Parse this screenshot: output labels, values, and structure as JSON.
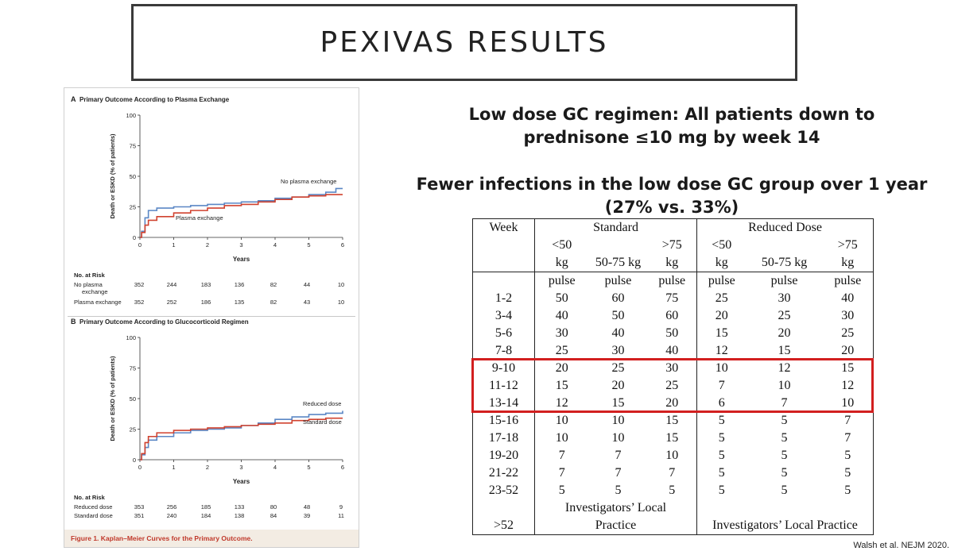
{
  "slide": {
    "title": "PEXIVAS RESULTS",
    "line1": "Low dose GC regimen: All patients down to prednisone ≤10 mg by week 14",
    "line2": "Fewer infections in the low dose GC group over 1 year (27% vs. 33%)",
    "citation": "Walsh et al. NEJM 2020."
  },
  "figure": {
    "caption": "Figure 1. Kaplan–Meier Curves for the Primary Outcome.",
    "panel_a": {
      "letter": "A",
      "title": "Primary Outcome According to Plasma Exchange",
      "ylabel": "Death or ESKD (% of patients)",
      "xlabel": "Years",
      "series_labels": [
        "No plasma exchange",
        "Plasma exchange"
      ],
      "risk_title": "No. at Risk",
      "risk_rows": [
        {
          "name": "No plasma",
          "name2": "exchange",
          "values": [
            "352",
            "244",
            "183",
            "136",
            "82",
            "44",
            "10"
          ]
        },
        {
          "name": "Plasma exchange",
          "values": [
            "352",
            "252",
            "186",
            "135",
            "82",
            "43",
            "10"
          ]
        }
      ]
    },
    "panel_b": {
      "letter": "B",
      "title": "Primary Outcome According to Glucocorticoid Regimen",
      "ylabel": "Death or ESKD (% of patients)",
      "xlabel": "Years",
      "series_labels": [
        "Reduced dose",
        "Standard dose"
      ],
      "risk_title": "No. at Risk",
      "risk_rows": [
        {
          "name": "Reduced dose",
          "values": [
            "353",
            "256",
            "185",
            "133",
            "80",
            "48",
            "9"
          ]
        },
        {
          "name": "Standard dose",
          "values": [
            "351",
            "240",
            "184",
            "138",
            "84",
            "39",
            "11"
          ]
        }
      ]
    },
    "y_ticks": [
      "0",
      "25",
      "50",
      "75",
      "100"
    ],
    "x_ticks": [
      "0",
      "1",
      "2",
      "3",
      "4",
      "5",
      "6"
    ],
    "colors": {
      "blue": "#5b87c5",
      "red": "#d0422f"
    }
  },
  "chart_data": [
    {
      "type": "line",
      "title": "Primary Outcome According to Plasma Exchange",
      "xlabel": "Years",
      "ylabel": "Death or ESKD (% of patients)",
      "xlim": [
        0,
        6
      ],
      "ylim": [
        0,
        100
      ],
      "series": [
        {
          "name": "No plasma exchange",
          "x": [
            0,
            0.05,
            0.15,
            0.25,
            0.5,
            1,
            1.5,
            2,
            2.5,
            3,
            3.5,
            4,
            4.5,
            5,
            5.5,
            5.8,
            6
          ],
          "y": [
            0,
            5,
            16,
            22,
            24,
            25,
            26,
            27,
            28,
            29,
            30,
            32,
            33,
            35,
            37,
            40,
            40
          ]
        },
        {
          "name": "Plasma exchange",
          "x": [
            0,
            0.05,
            0.15,
            0.25,
            0.5,
            1,
            1.5,
            2,
            2.5,
            3,
            3.5,
            4,
            4.5,
            5,
            5.5,
            6
          ],
          "y": [
            0,
            4,
            10,
            14,
            17,
            20,
            22,
            24,
            26,
            27,
            29,
            31,
            33,
            34,
            35,
            35
          ]
        }
      ]
    },
    {
      "type": "line",
      "title": "Primary Outcome According to Glucocorticoid Regimen",
      "xlabel": "Years",
      "ylabel": "Death or ESKD (% of patients)",
      "xlim": [
        0,
        6
      ],
      "ylim": [
        0,
        100
      ],
      "series": [
        {
          "name": "Reduced dose",
          "x": [
            0,
            0.05,
            0.15,
            0.25,
            0.5,
            1,
            1.5,
            2,
            2.5,
            3,
            3.5,
            4,
            4.5,
            5,
            5.5,
            6
          ],
          "y": [
            0,
            4,
            10,
            16,
            19,
            22,
            24,
            25,
            26,
            28,
            30,
            33,
            35,
            37,
            38,
            40
          ]
        },
        {
          "name": "Standard dose",
          "x": [
            0,
            0.05,
            0.15,
            0.25,
            0.5,
            1,
            1.5,
            2,
            2.5,
            3,
            3.5,
            4,
            4.5,
            5,
            5.5,
            6
          ],
          "y": [
            0,
            5,
            14,
            19,
            22,
            24,
            25,
            26,
            27,
            28,
            29,
            30,
            32,
            33,
            34,
            34
          ]
        }
      ]
    }
  ],
  "dose_table": {
    "week_label": "Week",
    "standard_label": "Standard",
    "reduced_label": "Reduced Dose",
    "weight_cols": [
      {
        "l1": "<50",
        "l2": "kg"
      },
      {
        "l1": "",
        "l2": "50-75 kg"
      },
      {
        "l1": ">75",
        "l2": "kg"
      },
      {
        "l1": "<50",
        "l2": "kg"
      },
      {
        "l1": "",
        "l2": "50-75 kg"
      },
      {
        "l1": ">75",
        "l2": "kg"
      }
    ],
    "pulse_row": [
      "pulse",
      "pulse",
      "pulse",
      "pulse",
      "pulse",
      "pulse"
    ],
    "rows": [
      {
        "week": "1-2",
        "values": [
          "50",
          "60",
          "75",
          "25",
          "30",
          "40"
        ]
      },
      {
        "week": "3-4",
        "values": [
          "40",
          "50",
          "60",
          "20",
          "25",
          "30"
        ]
      },
      {
        "week": "5-6",
        "values": [
          "30",
          "40",
          "50",
          "15",
          "20",
          "25"
        ]
      },
      {
        "week": "7-8",
        "values": [
          "25",
          "30",
          "40",
          "12",
          "15",
          "20"
        ]
      },
      {
        "week": "9-10",
        "values": [
          "20",
          "25",
          "30",
          "10",
          "12",
          "15"
        ]
      },
      {
        "week": "11-12",
        "values": [
          "15",
          "20",
          "25",
          "7",
          "10",
          "12"
        ]
      },
      {
        "week": "13-14",
        "values": [
          "12",
          "15",
          "20",
          "6",
          "7",
          "10"
        ]
      },
      {
        "week": "15-16",
        "values": [
          "10",
          "10",
          "15",
          "5",
          "5",
          "7"
        ]
      },
      {
        "week": "17-18",
        "values": [
          "10",
          "10",
          "15",
          "5",
          "5",
          "7"
        ]
      },
      {
        "week": "19-20",
        "values": [
          "7",
          "7",
          "10",
          "5",
          "5",
          "5"
        ]
      },
      {
        "week": "21-22",
        "values": [
          "7",
          "7",
          "7",
          "5",
          "5",
          "5"
        ]
      },
      {
        "week": "23-52",
        "values": [
          "5",
          "5",
          "5",
          "5",
          "5",
          "5"
        ]
      }
    ],
    "last_week": ">52",
    "std_practice_l1": "Investigators’ Local",
    "std_practice_l2": "Practice",
    "red_practice": "Investigators’ Local Practice"
  }
}
